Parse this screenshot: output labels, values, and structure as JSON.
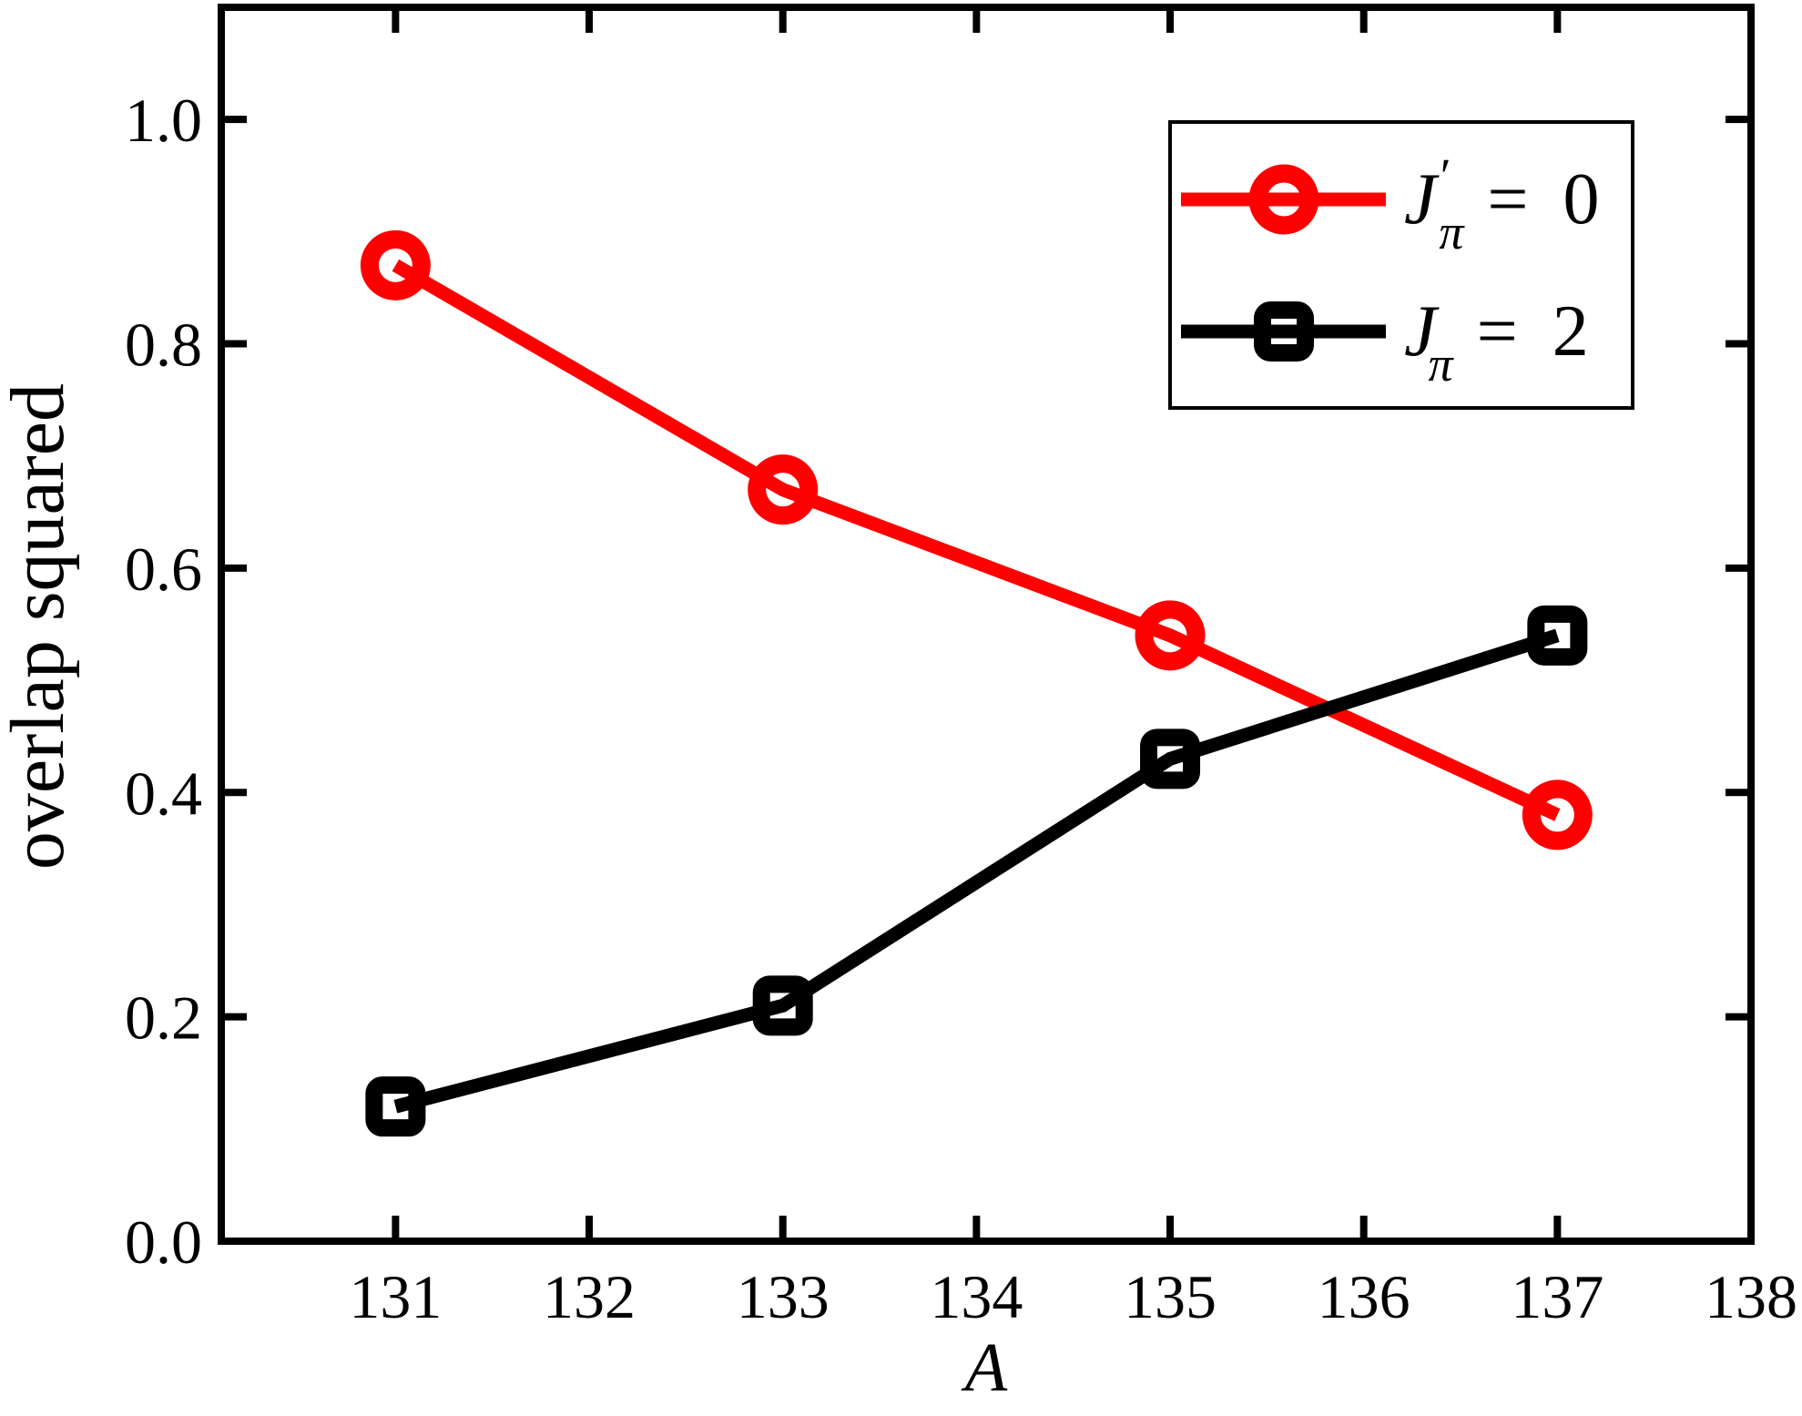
{
  "figure": {
    "background": "#ffffff",
    "frame_color": "#000000"
  },
  "chart_data": {
    "type": "line",
    "title": "",
    "xlabel": "A",
    "ylabel": "overlap squared",
    "xlim": [
      130.1,
      138
    ],
    "ylim": [
      0,
      1.1
    ],
    "x_ticks": [
      131,
      132,
      133,
      134,
      135,
      136,
      137,
      138
    ],
    "y_ticks": [
      0.0,
      0.2,
      0.4,
      0.6,
      0.8,
      1.0
    ],
    "y_tick_labels": [
      "0.0",
      "0.2",
      "0.4",
      "0.6",
      "0.8",
      "1.0"
    ],
    "grid": false,
    "frame": "full box with mirrored inward ticks",
    "legend_position": "top-right",
    "x": [
      131,
      133,
      135,
      137
    ],
    "series": [
      {
        "name": "J'π = 0",
        "marker": "circle",
        "color": "#ff0000",
        "values": [
          0.87,
          0.67,
          0.54,
          0.38
        ]
      },
      {
        "name": "Jπ = 2",
        "marker": "square",
        "color": "#000000",
        "values": [
          0.12,
          0.21,
          0.43,
          0.54
        ]
      }
    ]
  },
  "legend": {
    "items": [
      {
        "symbol": "J",
        "prime": "′",
        "subscript": "π",
        "equals_value": "= 0",
        "marker": "circle",
        "color": "#ff0000"
      },
      {
        "symbol": "J",
        "prime": "",
        "subscript": "π",
        "equals_value": "= 2",
        "marker": "square",
        "color": "#000000"
      }
    ]
  }
}
